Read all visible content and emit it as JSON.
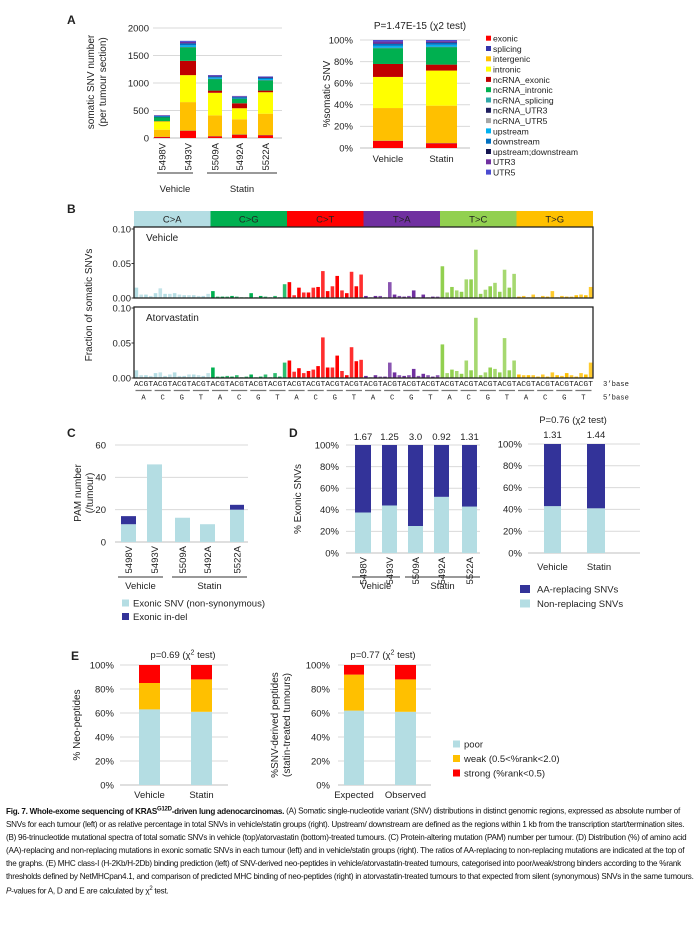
{
  "panels": {
    "a": "A",
    "b": "B",
    "c": "C",
    "d": "D",
    "e": "E"
  },
  "chart_data": {
    "a_counts": {
      "type": "bar",
      "stacked": true,
      "ylabel": [
        "somatic SNV number",
        "(per tumour section)"
      ],
      "ylim": [
        0,
        2000
      ],
      "ytick_labels": [
        "0",
        "500",
        "1000",
        "1500",
        "2000"
      ],
      "grid": true,
      "categories": [
        "5498V",
        "5493V",
        "5509A",
        "5492A",
        "5522A"
      ],
      "groups": [
        {
          "label": "Vehicle"
        },
        {
          "label": "Statin"
        }
      ],
      "series": [
        {
          "name": "exonic",
          "color": "#ff0000",
          "values": [
            20,
            130,
            30,
            60,
            50
          ]
        },
        {
          "name": "splicing",
          "color": "#3333aa",
          "values": [
            1,
            3,
            2,
            1,
            2
          ]
        },
        {
          "name": "intergenic",
          "color": "#ffc000",
          "values": [
            130,
            520,
            380,
            280,
            390
          ]
        },
        {
          "name": "intronic",
          "color": "#ffff00",
          "values": [
            150,
            490,
            410,
            200,
            390
          ]
        },
        {
          "name": "ncRNA_exonic",
          "color": "#c00000",
          "values": [
            5,
            260,
            40,
            90,
            30
          ]
        },
        {
          "name": "ncRNA_intronic",
          "color": "#00b050",
          "values": [
            75,
            245,
            210,
            85,
            185
          ]
        },
        {
          "name": "ncRNA_splicing",
          "color": "#2fa8a8",
          "values": [
            1,
            4,
            3,
            2,
            3
          ]
        },
        {
          "name": "ncRNA_UTR3",
          "color": "#1f1f5f",
          "values": [
            1,
            2,
            1,
            1,
            1
          ]
        },
        {
          "name": "ncRNA_UTR5",
          "color": "#a6a6a6",
          "values": [
            0,
            1,
            1,
            0,
            1
          ]
        },
        {
          "name": "upstream",
          "color": "#00b0f0",
          "values": [
            8,
            30,
            20,
            12,
            20
          ]
        },
        {
          "name": "downstream",
          "color": "#0070c0",
          "values": [
            10,
            35,
            22,
            15,
            25
          ]
        },
        {
          "name": "upstream;downstream",
          "color": "#141450",
          "values": [
            1,
            2,
            1,
            1,
            1
          ]
        },
        {
          "name": "UTR3",
          "color": "#7030a0",
          "values": [
            8,
            25,
            15,
            10,
            12
          ]
        },
        {
          "name": "UTR5",
          "color": "#4b4bd0",
          "values": [
            5,
            20,
            10,
            8,
            10
          ]
        }
      ]
    },
    "a_percent": {
      "type": "bar",
      "stacked": true,
      "title": "P=1.47E-15 (χ2 test)",
      "ylabel": "%somatic SNV",
      "ylim": [
        0,
        100
      ],
      "ytick_labels": [
        "0%",
        "20%",
        "40%",
        "60%",
        "80%",
        "100%"
      ],
      "grid": true,
      "legend": "right",
      "categories": [
        "Vehicle",
        "Statin"
      ],
      "series": [
        {
          "name": "exonic",
          "values": [
            6.5,
            4.3
          ]
        },
        {
          "name": "splicing",
          "values": [
            0.2,
            0.2
          ]
        },
        {
          "name": "intergenic",
          "values": [
            30.3,
            34.7
          ]
        },
        {
          "name": "intronic",
          "values": [
            28.8,
            32.5
          ]
        },
        {
          "name": "ncRNA_exonic",
          "values": [
            12.0,
            5.5
          ]
        },
        {
          "name": "ncRNA_intronic",
          "values": [
            14.6,
            16.2
          ]
        },
        {
          "name": "ncRNA_splicing",
          "values": [
            0.3,
            0.2
          ]
        },
        {
          "name": "ncRNA_UTR3",
          "values": [
            0.1,
            0.1
          ]
        },
        {
          "name": "ncRNA_UTR5",
          "values": [
            0.05,
            0.05
          ]
        },
        {
          "name": "upstream",
          "values": [
            1.7,
            1.8
          ]
        },
        {
          "name": "downstream",
          "values": [
            2.0,
            2.0
          ]
        },
        {
          "name": "upstream;downstream",
          "values": [
            0.1,
            0.1
          ]
        },
        {
          "name": "UTR3",
          "values": [
            1.9,
            1.3
          ]
        },
        {
          "name": "UTR5",
          "values": [
            1.45,
            1.05
          ]
        }
      ]
    },
    "b_spectra": {
      "type": "bar",
      "ylabel": "Fraction of somatic SNVs",
      "ylim": [
        0,
        0.1
      ],
      "ytick_labels": [
        "0.00",
        "0.05",
        "0.10"
      ],
      "mutation_types": [
        {
          "label": "C>A",
          "color": "#b4dde3"
        },
        {
          "label": "C>G",
          "color": "#00b050"
        },
        {
          "label": "C>T",
          "color": "#ff0000"
        },
        {
          "label": "T>A",
          "color": "#7030a0"
        },
        {
          "label": "T>C",
          "color": "#92d050"
        },
        {
          "label": "T>G",
          "color": "#ffc000"
        }
      ],
      "base3_label": "3’base",
      "base5_label": "5’base",
      "base3": "ACGTACGTACGTACGTACGTACGTACGTACGTACGTACGTACGTACGTACGTACGTACGTACGTACGTACGTACGTACGTACGTACGTACGTACGT",
      "base5": [
        "A",
        "C",
        "G",
        "T",
        "A",
        "C",
        "G",
        "T",
        "A",
        "C",
        "G",
        "T",
        "A",
        "C",
        "G",
        "T",
        "A",
        "C",
        "G",
        "T",
        "A",
        "C",
        "G",
        "T"
      ],
      "panels": [
        {
          "name": "Vehicle",
          "values": [
            [
              0.015,
              0.005,
              0.005,
              0.003,
              0.007,
              0.014,
              0.006,
              0.006,
              0.007,
              0.005,
              0.004,
              0.004,
              0.004,
              0.003,
              0.003,
              0.006
            ],
            [
              0.01,
              0.002,
              0.002,
              0.002,
              0.003,
              0.002,
              0.001,
              0.001,
              0.007,
              0.001,
              0.003,
              0.002,
              0.001,
              0.003,
              0.001,
              0.02
            ],
            [
              0.023,
              0.004,
              0.015,
              0.008,
              0.008,
              0.015,
              0.016,
              0.039,
              0.01,
              0.017,
              0.032,
              0.011,
              0.007,
              0.038,
              0.017,
              0.034
            ],
            [
              0.003,
              0.001,
              0.003,
              0.003,
              0.001,
              0.023,
              0.005,
              0.003,
              0.002,
              0.003,
              0.011,
              0.001,
              0.005,
              0.001,
              0.002,
              0.002
            ],
            [
              0.046,
              0.008,
              0.016,
              0.011,
              0.009,
              0.027,
              0.027,
              0.07,
              0.006,
              0.012,
              0.017,
              0.022,
              0.009,
              0.041,
              0.015,
              0.035
            ],
            [
              0.002,
              0.003,
              0.001,
              0.005,
              0.001,
              0.003,
              0.002,
              0.01,
              0.001,
              0.003,
              0.002,
              0.002,
              0.004,
              0.005,
              0.004,
              0.016
            ]
          ]
        },
        {
          "name": "Atorvastatin",
          "values": [
            [
              0.011,
              0.004,
              0.004,
              0.003,
              0.007,
              0.008,
              0.003,
              0.005,
              0.008,
              0.003,
              0.003,
              0.005,
              0.005,
              0.004,
              0.003,
              0.007
            ],
            [
              0.015,
              0.002,
              0.002,
              0.003,
              0.002,
              0.004,
              0.001,
              0.002,
              0.005,
              0.001,
              0.002,
              0.005,
              0.001,
              0.007,
              0.002,
              0.022
            ],
            [
              0.025,
              0.009,
              0.014,
              0.007,
              0.01,
              0.012,
              0.017,
              0.058,
              0.015,
              0.015,
              0.032,
              0.01,
              0.004,
              0.044,
              0.024,
              0.026
            ],
            [
              0.003,
              0.001,
              0.004,
              0.002,
              0.002,
              0.022,
              0.008,
              0.004,
              0.003,
              0.004,
              0.013,
              0.003,
              0.006,
              0.004,
              0.002,
              0.004
            ],
            [
              0.048,
              0.007,
              0.012,
              0.01,
              0.006,
              0.025,
              0.011,
              0.086,
              0.004,
              0.008,
              0.015,
              0.013,
              0.008,
              0.057,
              0.011,
              0.025
            ],
            [
              0.005,
              0.004,
              0.004,
              0.004,
              0.002,
              0.005,
              0.002,
              0.008,
              0.004,
              0.003,
              0.007,
              0.004,
              0.002,
              0.007,
              0.005,
              0.022
            ]
          ]
        }
      ]
    },
    "c_pam": {
      "type": "bar",
      "stacked": true,
      "ylabel": [
        "PAM number",
        "(/tumour)"
      ],
      "ylim": [
        0,
        60
      ],
      "ytick_labels": [
        "0",
        "20",
        "40",
        "60"
      ],
      "grid": true,
      "categories": [
        "5498V",
        "5493V",
        "5509A",
        "5492A",
        "5522A"
      ],
      "groups": [
        {
          "label": "Vehicle"
        },
        {
          "label": "Statin"
        }
      ],
      "series": [
        {
          "name": "Exonic SNV (non-synonymous)",
          "color": "#b4dde3",
          "values": [
            11,
            48,
            15,
            11,
            20
          ]
        },
        {
          "name": "Exonic in-del",
          "color": "#333399",
          "values": [
            5,
            0,
            0,
            0,
            3
          ]
        }
      ]
    },
    "d_tumour": {
      "type": "bar",
      "stacked": true,
      "ylabel": "% Exonic SNVs",
      "ylim": [
        0,
        100
      ],
      "ytick_labels": [
        "0%",
        "20%",
        "40%",
        "60%",
        "80%",
        "100%"
      ],
      "grid": true,
      "categories": [
        "5498V",
        "5493V",
        "5509A",
        "5492A",
        "5522A"
      ],
      "ratio_labels": [
        "1.67",
        "1.25",
        "3.0",
        "0.92",
        "1.31"
      ],
      "groups": [
        {
          "label": "Vehicle"
        },
        {
          "label": "Statin"
        }
      ],
      "series": [
        {
          "name": "Non-replacing SNVs",
          "color": "#b4dde3",
          "values": [
            37.5,
            44,
            25,
            52,
            43
          ]
        },
        {
          "name": "AA-replacing SNVs",
          "color": "#333399",
          "values": [
            62.5,
            56,
            75,
            48,
            57
          ]
        }
      ]
    },
    "d_group": {
      "type": "bar",
      "stacked": true,
      "title": "P=0.76 (χ2 test)",
      "ylim": [
        0,
        100
      ],
      "ytick_labels": [
        "0%",
        "20%",
        "40%",
        "60%",
        "80%",
        "100%"
      ],
      "grid": true,
      "categories": [
        "Vehicle",
        "Statin"
      ],
      "ratio_labels": [
        "1.31",
        "1.44"
      ],
      "legend": [
        "AA-replacing SNVs",
        "Non-replacing SNVs"
      ],
      "series": [
        {
          "name": "Non-replacing SNVs",
          "values": [
            43,
            41
          ]
        },
        {
          "name": "AA-replacing SNVs",
          "values": [
            57,
            59
          ]
        }
      ]
    },
    "e_neo": {
      "type": "bar",
      "stacked": true,
      "title_prefix": "p=0.69 (χ",
      "title_sup": "2",
      "title_suffix": " test)",
      "ylabel": "% Neo-peptides",
      "ylim": [
        0,
        100
      ],
      "ytick_labels": [
        "0%",
        "20%",
        "40%",
        "60%",
        "80%",
        "100%"
      ],
      "grid": true,
      "categories": [
        "Vehicle",
        "Statin"
      ],
      "series": [
        {
          "name": "poor",
          "values": [
            63,
            61
          ]
        },
        {
          "name": "weak (0.5<%rank<2.0)",
          "values": [
            22,
            27
          ]
        },
        {
          "name": "strong (%rank<0.5)",
          "values": [
            15,
            12
          ]
        }
      ]
    },
    "e_expected": {
      "type": "bar",
      "stacked": true,
      "title_prefix": "p=0.77 (χ",
      "title_sup": "2",
      "title_suffix": " test)",
      "ylabel": [
        "%SNV-derived peptides",
        "(statin-treated tumours)"
      ],
      "ylim": [
        0,
        100
      ],
      "ytick_labels": [
        "0%",
        "20%",
        "40%",
        "60%",
        "80%",
        "100%"
      ],
      "grid": true,
      "legend": "right",
      "categories": [
        "Expected",
        "Observed"
      ],
      "series": [
        {
          "name": "poor",
          "color": "#b4dde3",
          "values": [
            62,
            61
          ]
        },
        {
          "name": "weak (0.5<%rank<2.0)",
          "color": "#ffc000",
          "values": [
            30,
            27
          ]
        },
        {
          "name": "strong (%rank<0.5)",
          "color": "#ff0000",
          "values": [
            8,
            12
          ]
        }
      ]
    }
  },
  "caption": {
    "title_prefix": "Fig. 7. Whole-exome sequencing of KRAS",
    "title_sup": "G12D",
    "title_suffix": "-driven lung adenocarcinomas.",
    "body": " (A) Somatic single-nucleotide variant (SNV) distributions in distinct genomic regions, expressed as absolute number of SNVs for each tumour (left) or as relative percentage in total SNVs in vehicle/statin groups (right). Upstream/ downstream are defined as the regions within 1 kb from the transcription start/termination sites. (B) 96-trinucleotide mutational spectra of total somatic SNVs in vehicle (top)/atorvastatin (bottom)-treated tumours. (C) Protein-altering mutation (PAM) number per tumour. (D) Distribution (%) of amino acid (AA)-replacing and non-replacing mutations in exonic somatic SNVs in each tumour (left) and in vehicle/statin groups (right). The ratios of AA-replacing to non-replacing mutations are indicated at the top of the graphs. (E) MHC class-I (H-2Kb/H-2Db) binding prediction (left) of SNV-derived neo-peptides in vehicle/atorvastatin-treated tumours, categorised into poor/weak/strong binders according to the %rank thresholds defined by NetMHCpan4.1, and comparison of predicted MHC binding of neo-peptides (right) in atorvastatin-treated tumours to that expected from silent (synonymous) SNVs in the same tumours. ",
    "italic_p": "P",
    "body2": "-values for A, D and E are calculated by χ",
    "body2_sup": "2",
    "body3": " test."
  }
}
